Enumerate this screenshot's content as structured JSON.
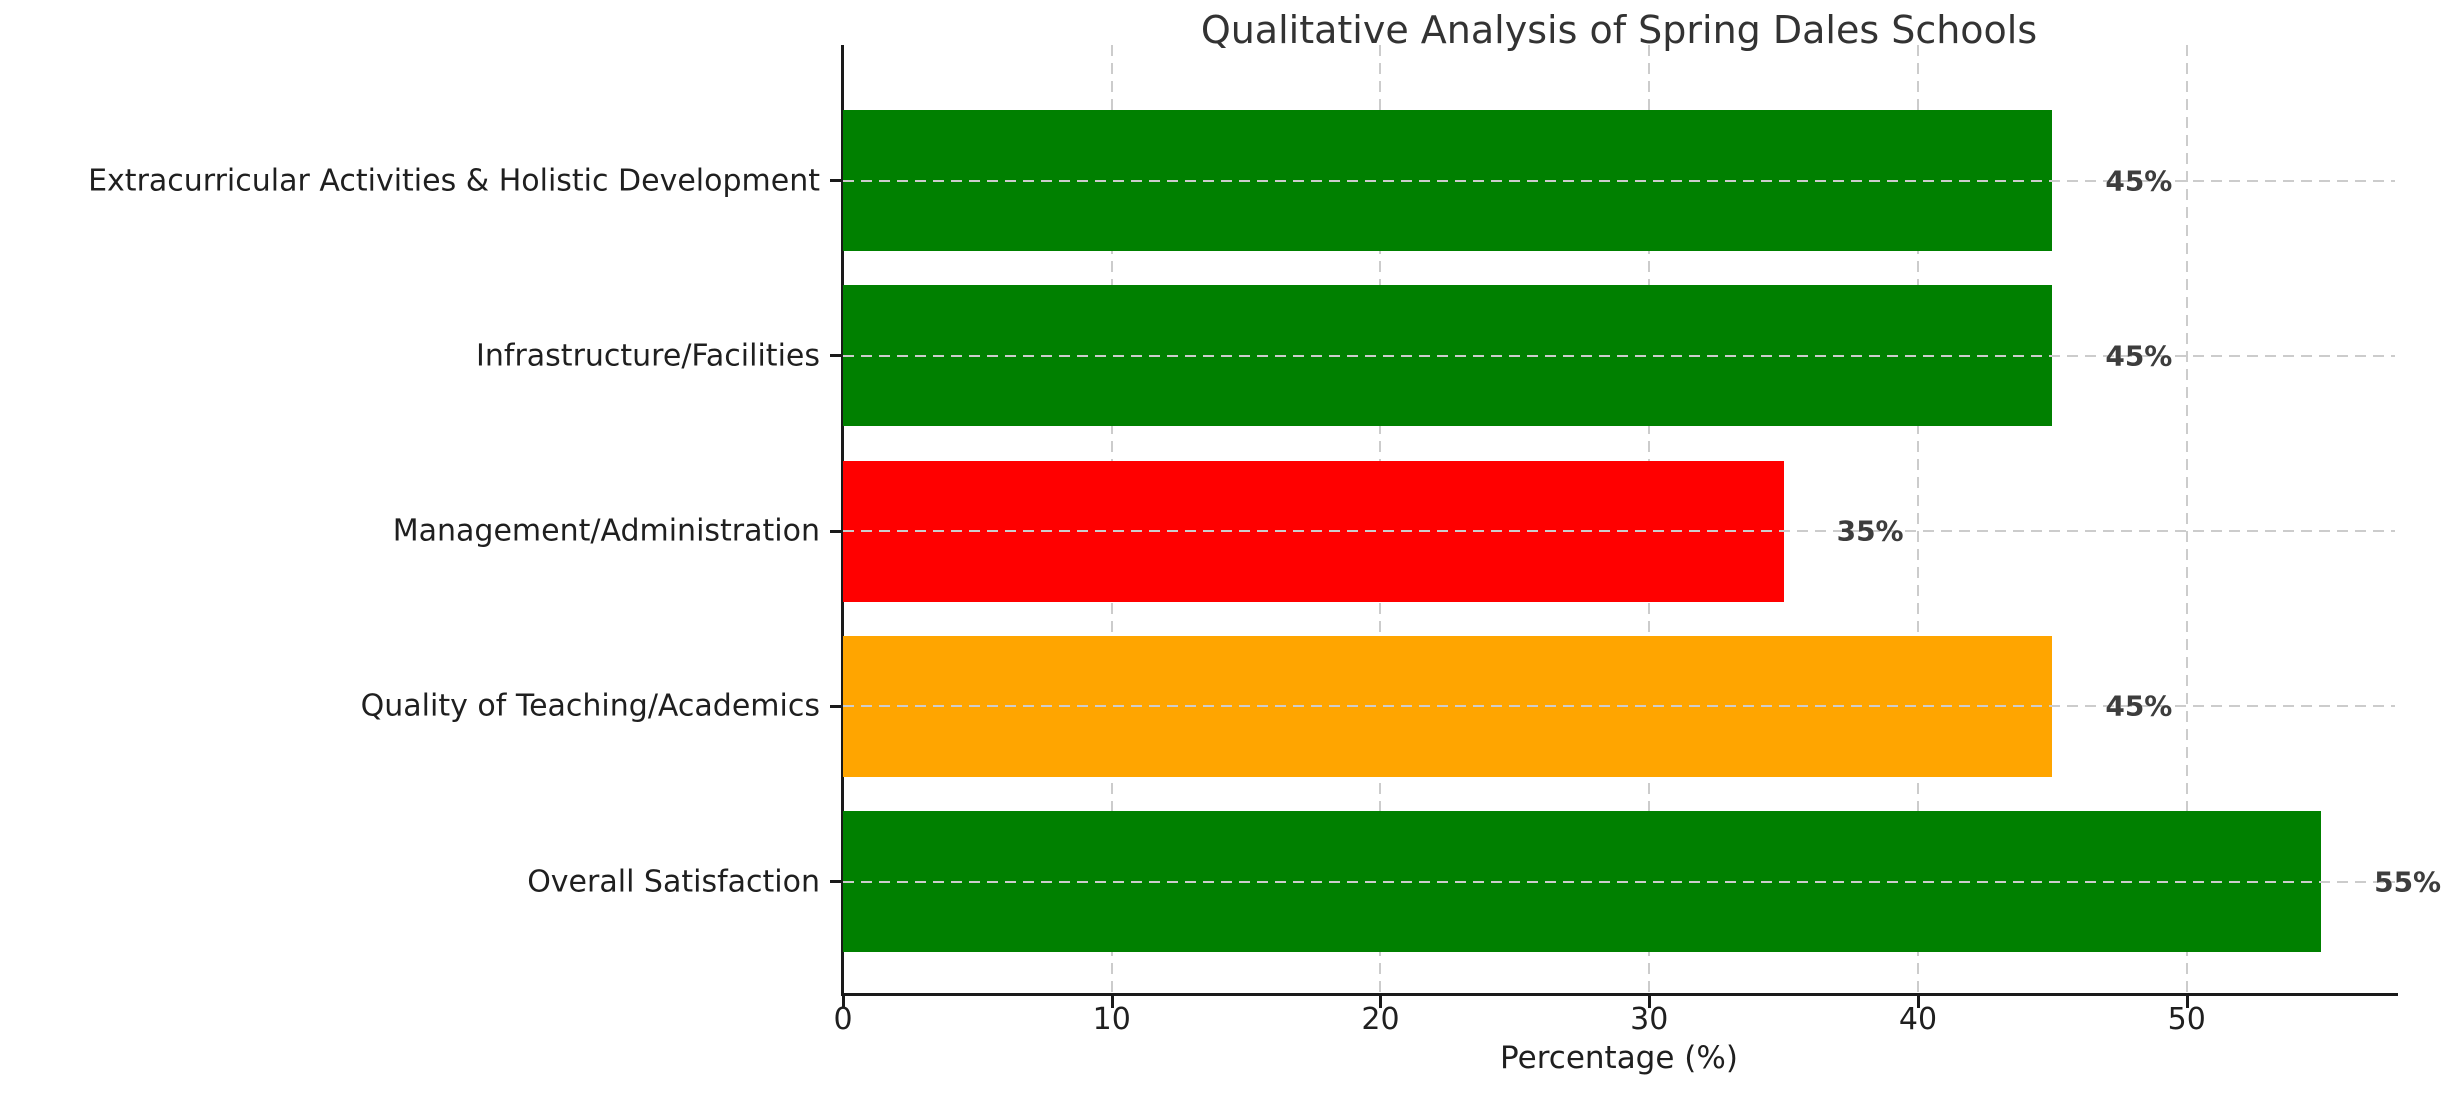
{
  "chart_data": {
    "type": "bar",
    "orientation": "horizontal",
    "title": "Qualitative Analysis of Spring Dales Schools",
    "xlabel": "Percentage (%)",
    "ylabel": "",
    "categories": [
      "Extracurricular Activities & Holistic Development",
      "Infrastructure/Facilities",
      "Management/Administration",
      "Quality of Teaching/Academics",
      "Overall Satisfaction"
    ],
    "values": [
      45,
      45,
      35,
      45,
      55
    ],
    "value_labels": [
      "45%",
      "45%",
      "35%",
      "45%",
      "55%"
    ],
    "bar_colors": [
      "#008000",
      "#008000",
      "#ff0000",
      "#ffa500",
      "#008000"
    ],
    "xticks": [
      0,
      10,
      20,
      30,
      40,
      50
    ],
    "xtick_labels": [
      "0",
      "10",
      "20",
      "30",
      "40",
      "50"
    ],
    "xlim": [
      0,
      57.75
    ],
    "grid": {
      "style": "dashed",
      "color": "#cccccc",
      "horizontal": true,
      "vertical": true,
      "horizontal_above_bars": true
    },
    "legend_position": "none",
    "colors": {
      "green": "#008000",
      "red": "#ff0000",
      "orange": "#ffa500",
      "title_text": "#333333",
      "axis_text": "#1f1f1f",
      "value_text": "#3d3d3d",
      "spine": "#1a1a1a",
      "grid": "#cccccc",
      "background": "#ffffff"
    }
  }
}
